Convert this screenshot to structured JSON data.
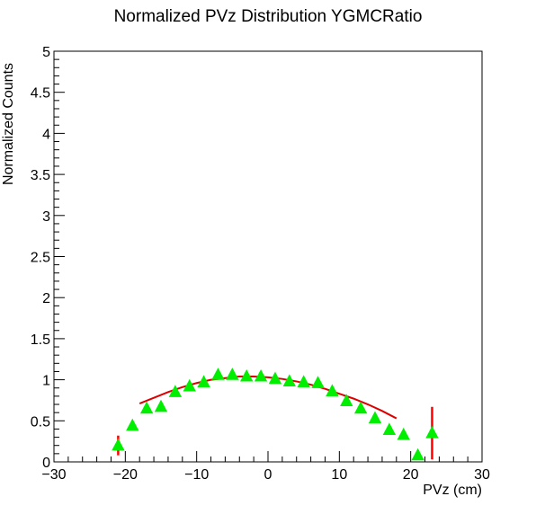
{
  "chart_data": {
    "type": "scatter",
    "title": "Normalized PVz Distribution YGMCRatio",
    "xlabel": "PVz (cm)",
    "ylabel": "Normalized Counts",
    "xlim": [
      -30,
      30
    ],
    "ylim": [
      0,
      5
    ],
    "x_ticks": [
      "−30",
      "−20",
      "−10",
      "0",
      "10",
      "20",
      "30"
    ],
    "x_tick_values": [
      -30,
      -20,
      -10,
      0,
      10,
      20,
      30
    ],
    "y_ticks": [
      "0",
      "0.5",
      "1",
      "1.5",
      "2",
      "2.5",
      "3",
      "3.5",
      "4",
      "4.5",
      "5"
    ],
    "y_tick_values": [
      0,
      0.5,
      1,
      1.5,
      2,
      2.5,
      3,
      3.5,
      4,
      4.5,
      5
    ],
    "grid": false,
    "series": [
      {
        "marker": "triangle",
        "color": "#00ee00",
        "error_color": "#ff0000",
        "points": [
          {
            "x": -21,
            "y": 0.2,
            "err": 0.12
          },
          {
            "x": -19,
            "y": 0.44,
            "err": 0.04
          },
          {
            "x": -17,
            "y": 0.65,
            "err": 0.03
          },
          {
            "x": -15,
            "y": 0.67,
            "err": 0.03
          },
          {
            "x": -13,
            "y": 0.85,
            "err": 0.02
          },
          {
            "x": -11,
            "y": 0.92,
            "err": 0.02
          },
          {
            "x": -9,
            "y": 0.97,
            "err": 0.02
          },
          {
            "x": -7,
            "y": 1.06,
            "err": 0.02
          },
          {
            "x": -5,
            "y": 1.06,
            "err": 0.02
          },
          {
            "x": -3,
            "y": 1.04,
            "err": 0.02
          },
          {
            "x": -1,
            "y": 1.04,
            "err": 0.02
          },
          {
            "x": 1,
            "y": 1.01,
            "err": 0.02
          },
          {
            "x": 3,
            "y": 0.98,
            "err": 0.02
          },
          {
            "x": 5,
            "y": 0.97,
            "err": 0.02
          },
          {
            "x": 7,
            "y": 0.96,
            "err": 0.02
          },
          {
            "x": 9,
            "y": 0.86,
            "err": 0.02
          },
          {
            "x": 11,
            "y": 0.74,
            "err": 0.02
          },
          {
            "x": 13,
            "y": 0.65,
            "err": 0.02
          },
          {
            "x": 15,
            "y": 0.53,
            "err": 0.02
          },
          {
            "x": 17,
            "y": 0.39,
            "err": 0.03
          },
          {
            "x": 19,
            "y": 0.33,
            "err": 0.03
          },
          {
            "x": 21,
            "y": 0.08,
            "err": 0.03
          },
          {
            "x": 23,
            "y": 0.35,
            "err": 0.32
          }
        ]
      }
    ],
    "fit": {
      "type": "line",
      "color": "#dd0000",
      "x": [
        -18,
        -16,
        -14,
        -12,
        -10,
        -8,
        -6,
        -4,
        -2,
        0,
        2,
        4,
        6,
        8,
        10,
        12,
        14,
        16,
        18
      ],
      "y": [
        0.71,
        0.78,
        0.85,
        0.91,
        0.96,
        1.0,
        1.02,
        1.04,
        1.04,
        1.03,
        1.01,
        0.98,
        0.94,
        0.89,
        0.83,
        0.77,
        0.7,
        0.62,
        0.53
      ]
    }
  }
}
